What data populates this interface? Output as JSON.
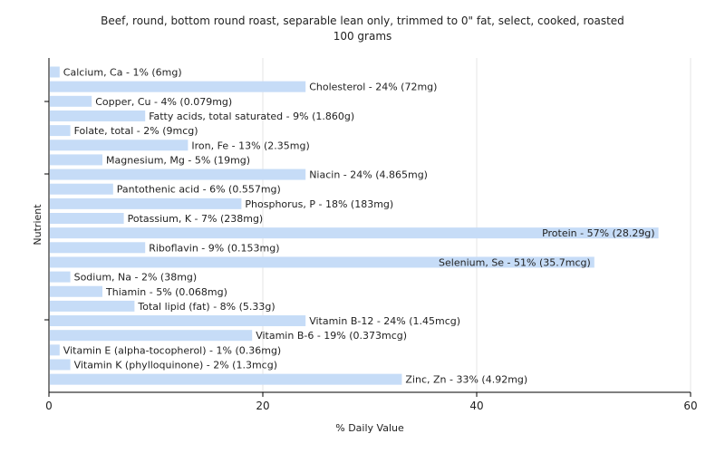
{
  "chart_data": {
    "type": "bar",
    "orientation": "horizontal",
    "title": "Beef, round, bottom round roast, separable lean only, trimmed to 0\" fat, select, cooked, roasted",
    "subtitle": "100 grams",
    "xlabel": "% Daily Value",
    "ylabel": "Nutrient",
    "xlim": [
      0,
      60
    ],
    "xticks": [
      0,
      20,
      40,
      60
    ],
    "grid": true,
    "bar_color": "#c6dcf7",
    "categories": [
      "Calcium, Ca",
      "Cholesterol",
      "Copper, Cu",
      "Fatty acids, total saturated",
      "Folate, total",
      "Iron, Fe",
      "Magnesium, Mg",
      "Niacin",
      "Pantothenic acid",
      "Phosphorus, P",
      "Potassium, K",
      "Protein",
      "Riboflavin",
      "Selenium, Se",
      "Sodium, Na",
      "Thiamin",
      "Total lipid (fat)",
      "Vitamin B-12",
      "Vitamin B-6",
      "Vitamin E (alpha-tocopherol)",
      "Vitamin K (phylloquinone)",
      "Zinc, Zn"
    ],
    "values": [
      1,
      24,
      4,
      9,
      2,
      13,
      5,
      24,
      6,
      18,
      7,
      57,
      9,
      51,
      2,
      5,
      8,
      24,
      19,
      1,
      2,
      33
    ],
    "labels": [
      "Calcium, Ca - 1% (6mg)",
      "Cholesterol - 24% (72mg)",
      "Copper, Cu - 4% (0.079mg)",
      "Fatty acids, total saturated - 9% (1.860g)",
      "Folate, total - 2% (9mcg)",
      "Iron, Fe - 13% (2.35mg)",
      "Magnesium, Mg - 5% (19mg)",
      "Niacin - 24% (4.865mg)",
      "Pantothenic acid - 6% (0.557mg)",
      "Phosphorus, P - 18% (183mg)",
      "Potassium, K - 7% (238mg)",
      "Protein - 57% (28.29g)",
      "Riboflavin - 9% (0.153mg)",
      "Selenium, Se - 51% (35.7mcg)",
      "Sodium, Na - 2% (38mg)",
      "Thiamin - 5% (0.068mg)",
      "Total lipid (fat) - 8% (5.33g)",
      "Vitamin B-12 - 24% (1.45mcg)",
      "Vitamin B-6 - 19% (0.373mcg)",
      "Vitamin E (alpha-tocopherol) - 1% (0.36mg)",
      "Vitamin K (phylloquinone) - 2% (1.3mcg)",
      "Zinc, Zn - 33% (4.92mg)"
    ]
  }
}
